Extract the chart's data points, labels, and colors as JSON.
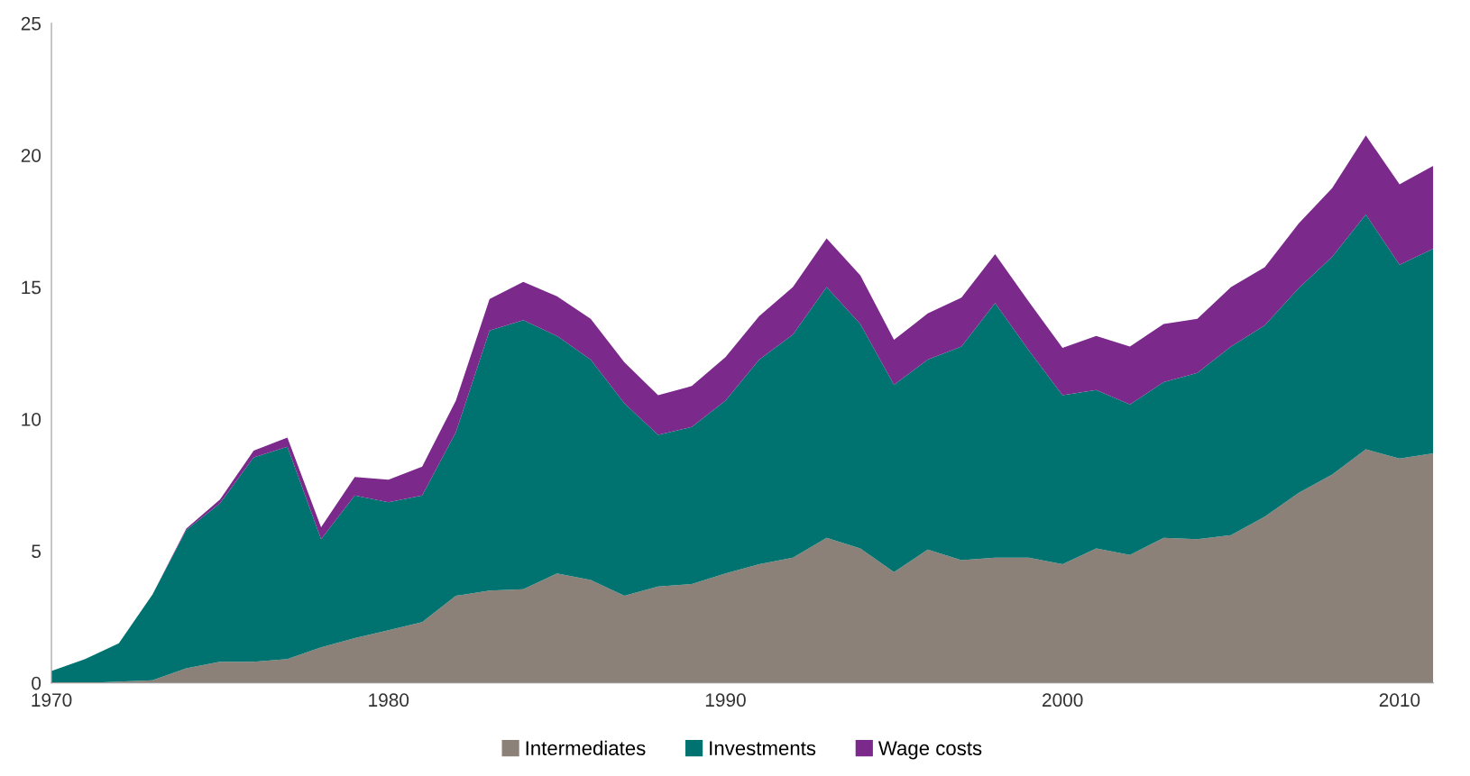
{
  "chart_data": {
    "type": "area",
    "stacked": true,
    "x": [
      1970,
      1971,
      1972,
      1973,
      1974,
      1975,
      1976,
      1977,
      1978,
      1979,
      1980,
      1981,
      1982,
      1983,
      1984,
      1985,
      1986,
      1987,
      1988,
      1989,
      1990,
      1991,
      1992,
      1993,
      1994,
      1995,
      1996,
      1997,
      1998,
      1999,
      2000,
      2001,
      2002,
      2003,
      2004,
      2005,
      2006,
      2007,
      2008,
      2009,
      2010,
      2011
    ],
    "series": [
      {
        "name": "Intermediates",
        "color": "#8b8178",
        "values": [
          0,
          0,
          0.05,
          0.1,
          0.55,
          0.8,
          0.8,
          0.9,
          1.35,
          1.7,
          2.0,
          2.3,
          3.3,
          3.5,
          3.55,
          4.15,
          3.9,
          3.3,
          3.65,
          3.75,
          4.15,
          4.5,
          4.75,
          5.5,
          5.1,
          4.2,
          5.05,
          4.65,
          4.75,
          4.75,
          4.5,
          5.1,
          4.85,
          5.5,
          5.45,
          5.6,
          6.3,
          7.2,
          7.9,
          8.85,
          8.5,
          8.7
        ]
      },
      {
        "name": "Investments",
        "color": "#007370",
        "values": [
          0.45,
          0.9,
          1.45,
          3.25,
          5.25,
          6.0,
          7.75,
          8.05,
          4.1,
          5.4,
          4.85,
          4.8,
          6.2,
          9.85,
          10.2,
          9.0,
          8.35,
          7.3,
          5.75,
          5.95,
          6.55,
          7.75,
          8.45,
          9.5,
          8.5,
          7.1,
          7.2,
          8.1,
          9.65,
          7.85,
          6.4,
          6.0,
          5.7,
          5.9,
          6.3,
          7.15,
          7.25,
          7.75,
          8.25,
          8.9,
          7.35,
          7.75
        ]
      },
      {
        "name": "Wage costs",
        "color": "#7b2a8c",
        "values": [
          0,
          0,
          0,
          0,
          0.05,
          0.15,
          0.25,
          0.35,
          0.45,
          0.7,
          0.85,
          1.1,
          1.2,
          1.2,
          1.45,
          1.5,
          1.55,
          1.55,
          1.5,
          1.55,
          1.65,
          1.65,
          1.8,
          1.85,
          1.85,
          1.7,
          1.75,
          1.85,
          1.85,
          1.85,
          1.8,
          2.05,
          2.2,
          2.2,
          2.05,
          2.25,
          2.2,
          2.45,
          2.6,
          3.0,
          3.05,
          3.15
        ]
      }
    ],
    "xlim": [
      1970,
      2011
    ],
    "xticks": [
      1970,
      1980,
      1990,
      2000,
      2010
    ],
    "ylim": [
      0,
      25
    ],
    "yticks": [
      0,
      5,
      10,
      15,
      20,
      25
    ],
    "grid": false,
    "legend": "bottom"
  }
}
